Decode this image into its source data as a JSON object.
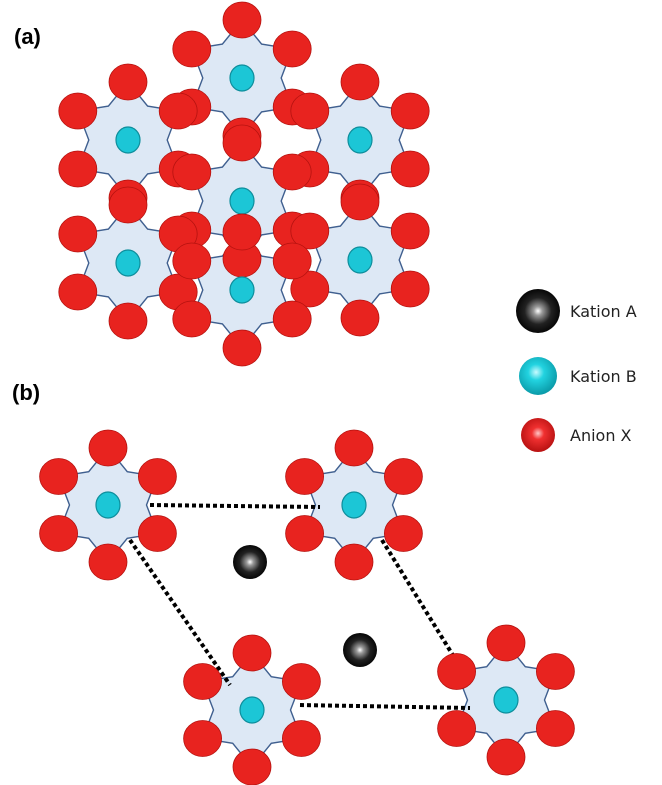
{
  "panels": [
    {
      "label": "(a)"
    },
    {
      "label": "(b)"
    }
  ],
  "legend": [
    {
      "label": "Kation A",
      "kind": "cation-a"
    },
    {
      "label": "Kation B",
      "kind": "cation-b"
    },
    {
      "label": "Anion X",
      "kind": "anion-x"
    }
  ],
  "colors": {
    "anion": "#e8231f",
    "anion_dark": "#b5120f",
    "cation_b": "#1cc6d6",
    "cation_b_dark": "#0e8e9c",
    "cation_a": "#111111",
    "polyhedron_fill": "#dde8f5",
    "polyhedron_edge": "#3f5f8f",
    "unit_cell_line": "#000000"
  }
}
